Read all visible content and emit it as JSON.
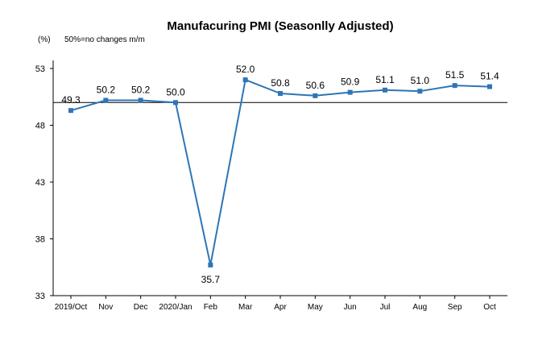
{
  "chart_data": {
    "type": "line",
    "title": "Manufacuring PMI (Seasonlly Adjusted)",
    "ylabel": "(%)",
    "annotation": "50%=no changes  m/m",
    "categories": [
      "2019/Oct",
      "Nov",
      "Dec",
      "2020/Jan",
      "Feb",
      "Mar",
      "Apr",
      "May",
      "Jun",
      "Jul",
      "Aug",
      "Sep",
      "Oct"
    ],
    "series": [
      {
        "values": [
          49.3,
          50.2,
          50.2,
          50.0,
          35.7,
          52.0,
          50.8,
          50.6,
          50.9,
          51.1,
          51.0,
          51.5,
          51.4
        ],
        "labels": [
          "49.3",
          "50.2",
          "50.2",
          "50.0",
          "35.7",
          "52.0",
          "50.8",
          "50.6",
          "50.9",
          "51.1",
          "51.0",
          "51.5",
          "51.4"
        ],
        "color": "#2E75B6"
      }
    ],
    "yticks": [
      33,
      38,
      43,
      48,
      53
    ],
    "ytick_labels": [
      "33",
      "38",
      "43",
      "48",
      "53"
    ],
    "ylim": [
      33,
      53
    ],
    "reference_line": 50,
    "grid": false,
    "legend": "none"
  }
}
